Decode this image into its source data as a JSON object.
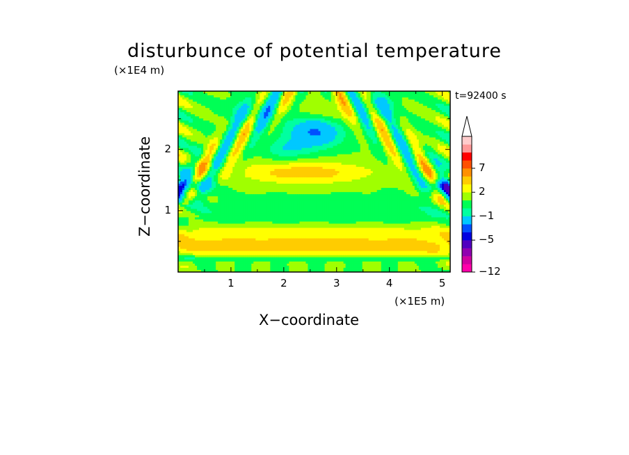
{
  "chart_data": {
    "type": "heatmap",
    "title": "disturbunce of potential temperature",
    "xlabel": "X−coordinate",
    "ylabel": "Z−coordinate",
    "x_unit": "(×1E5 m)",
    "z_unit": "(×1E4 m)",
    "time_label": "t=92400 s",
    "xlim": [
      0,
      5.15
    ],
    "ylim": [
      0,
      2.95
    ],
    "x_ticks": [
      "1",
      "2",
      "3",
      "4",
      "5"
    ],
    "x_tick_values": [
      1,
      2,
      3,
      4,
      5
    ],
    "y_ticks": [
      "1",
      "2"
    ],
    "y_tick_values": [
      1,
      2
    ],
    "colorbar": {
      "levels": [
        -12,
        -10,
        -8,
        -6,
        -5,
        -4,
        -2,
        -1,
        0,
        1,
        2,
        3,
        5,
        7,
        9,
        11
      ],
      "tick_labels": [
        "−12",
        "−5",
        "−1",
        "2",
        "7"
      ],
      "tick_values": [
        -12,
        -5,
        -1,
        2,
        7
      ],
      "colors": [
        "#ff00aa",
        "#d000a0",
        "#9000b0",
        "#5000c0",
        "#0000e0",
        "#0050ff",
        "#00c8ff",
        "#00ffa0",
        "#00ff55",
        "#a0ff00",
        "#ffff00",
        "#ffcc00",
        "#ff9000",
        "#ff5000",
        "#ff0000",
        "#ff9999",
        "#ffcccc"
      ],
      "extend": "max"
    },
    "field_description": "Perturbation field: near-surface warm layer (1–3 K) below z≈0.6; neutral band z≈0.8–1.2; warm patch 2–3 K near z≈1.6 around x≈2.5; cold anomalies (−1 to −6 K) in gravity-wave beams radiating upward from lateral edges and a cold core near x≈2.6, z≈2.3; oscillating wave patterns near x=0 and x=5."
  }
}
